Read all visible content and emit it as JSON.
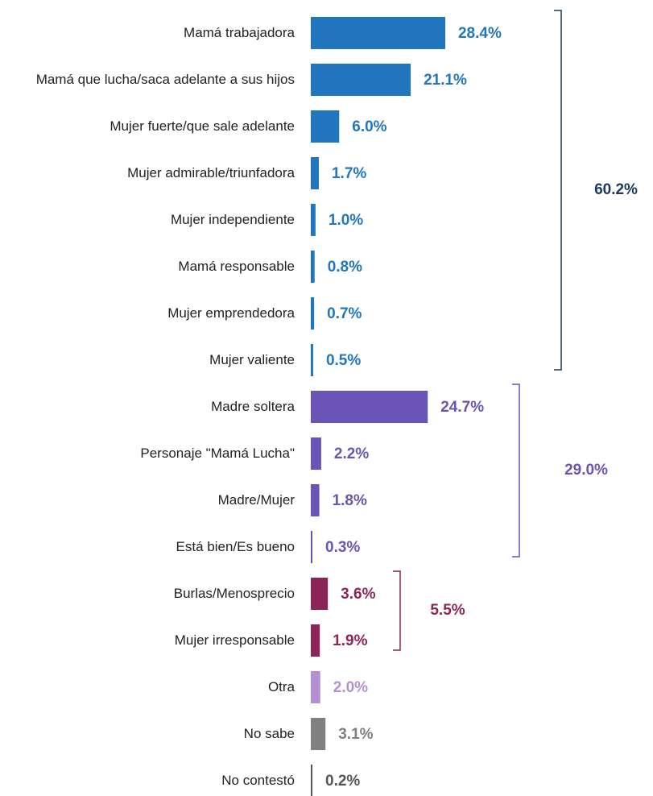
{
  "chart_data": {
    "type": "bar",
    "orientation": "horizontal",
    "categories": [
      "Mamá trabajadora",
      "Mamá que lucha/saca adelante a sus hijos",
      "Mujer fuerte/que sale adelante",
      "Mujer admirable/triunfadora",
      "Mujer independiente",
      "Mamá responsable",
      "Mujer emprendedora",
      "Mujer valiente",
      "Madre soltera",
      "Personaje \"Mamá Lucha\"",
      "Madre/Mujer",
      "Está bien/Es bueno",
      "Burlas/Menosprecio",
      "Mujer irresponsable",
      "Otra",
      "No sabe",
      "No contestó"
    ],
    "values": [
      28.4,
      21.1,
      6.0,
      1.7,
      1.0,
      0.8,
      0.7,
      0.5,
      24.7,
      2.2,
      1.8,
      0.3,
      3.6,
      1.9,
      2.0,
      3.1,
      0.2
    ],
    "value_labels": [
      "28.4%",
      "21.1%",
      "6.0%",
      "1.7%",
      "1.0%",
      "0.8%",
      "0.7%",
      "0.5%",
      "24.7%",
      "2.2%",
      "1.8%",
      "0.3%",
      "3.6%",
      "1.9%",
      "2.0%",
      "3.1%",
      "0.2%"
    ],
    "colors": [
      "#2176bd",
      "#2176bd",
      "#2176bd",
      "#2176bd",
      "#2176bd",
      "#2176bd",
      "#2176bd",
      "#2176bd",
      "#6a54b5",
      "#6a54b5",
      "#6a54b5",
      "#6a54b5",
      "#8b2558",
      "#8b2558",
      "#b68fd3",
      "#808080",
      "#555555"
    ],
    "groups": [
      {
        "first": 0,
        "last": 7,
        "value": 60.2,
        "label": "60.2%",
        "color": "#1b3a5c"
      },
      {
        "first": 8,
        "last": 11,
        "value": 29.0,
        "label": "29.0%",
        "color": "#6a54b5"
      },
      {
        "first": 12,
        "last": 13,
        "value": 5.5,
        "label": "5.5%",
        "color": "#8b2558"
      }
    ]
  }
}
